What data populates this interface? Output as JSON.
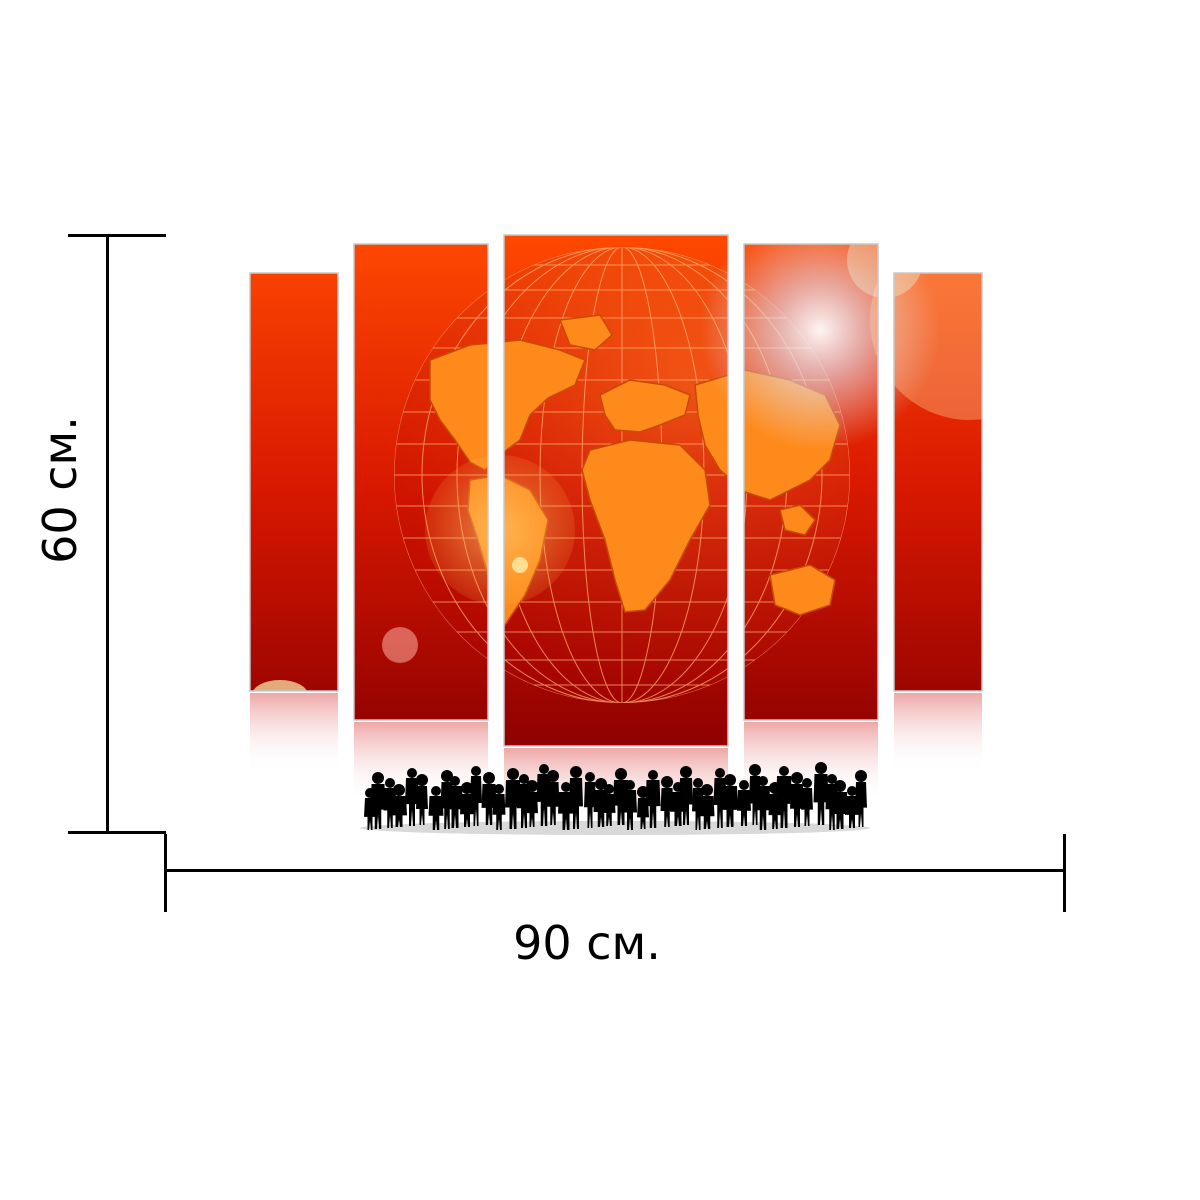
{
  "product": {
    "height_label": "60 см.",
    "width_label": "90 см."
  },
  "artwork": {
    "panel_count": 5,
    "subject": "globe",
    "colors": {
      "dark_red": "#8e0000",
      "red": "#d41a00",
      "orange": "#ff5a00",
      "land_orange": "#ff8a1c",
      "highlight": "#dfe8ff",
      "silhouette": "#000000"
    }
  }
}
